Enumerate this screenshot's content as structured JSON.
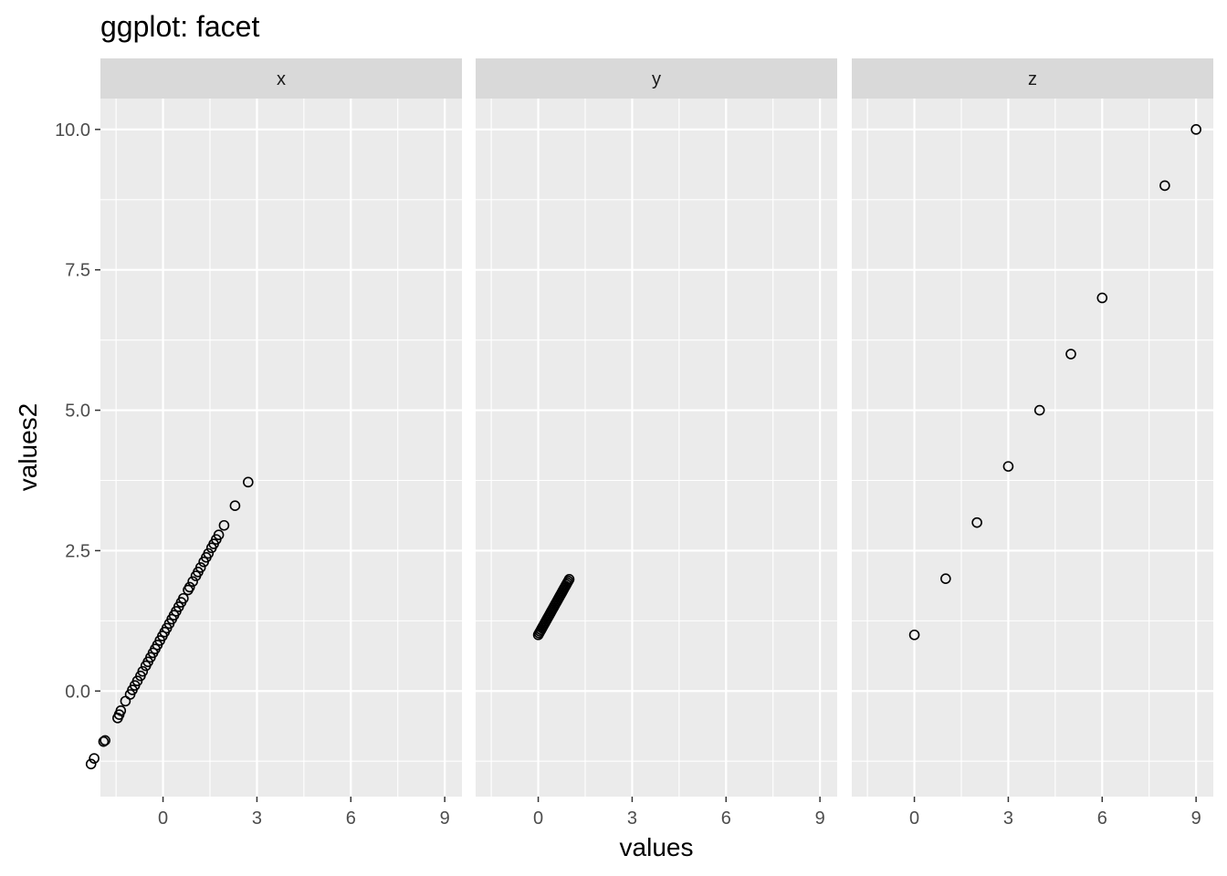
{
  "chart_data": {
    "type": "scatter",
    "title": "ggplot: facet",
    "xlabel": "values",
    "ylabel": "values2",
    "xlim": [
      -2.0,
      9.55
    ],
    "ylim": [
      -1.88,
      10.55
    ],
    "x_ticks": [
      0,
      3,
      6,
      9
    ],
    "y_ticks": [
      0.0,
      2.5,
      5.0,
      7.5,
      10.0
    ],
    "x_tick_labels": [
      "0",
      "3",
      "6",
      "9"
    ],
    "y_tick_labels": [
      "0.0",
      "2.5",
      "5.0",
      "7.5",
      "10.0"
    ],
    "grid": true,
    "facets": [
      {
        "label": "x",
        "points": [
          [
            -2.3,
            -1.3
          ],
          [
            -2.2,
            -1.2
          ],
          [
            -1.9,
            -0.9
          ],
          [
            -1.85,
            -0.88
          ],
          [
            -1.45,
            -0.48
          ],
          [
            -1.4,
            -0.42
          ],
          [
            -1.35,
            -0.35
          ],
          [
            -1.2,
            -0.18
          ],
          [
            -1.05,
            -0.06
          ],
          [
            -0.98,
            0.02
          ],
          [
            -0.9,
            0.1
          ],
          [
            -0.82,
            0.18
          ],
          [
            -0.72,
            0.27
          ],
          [
            -0.65,
            0.35
          ],
          [
            -0.55,
            0.45
          ],
          [
            -0.48,
            0.52
          ],
          [
            -0.4,
            0.6
          ],
          [
            -0.32,
            0.68
          ],
          [
            -0.25,
            0.75
          ],
          [
            -0.18,
            0.82
          ],
          [
            -0.1,
            0.9
          ],
          [
            -0.02,
            0.98
          ],
          [
            0.05,
            1.05
          ],
          [
            0.12,
            1.12
          ],
          [
            0.2,
            1.2
          ],
          [
            0.28,
            1.28
          ],
          [
            0.35,
            1.35
          ],
          [
            0.42,
            1.42
          ],
          [
            0.5,
            1.5
          ],
          [
            0.58,
            1.58
          ],
          [
            0.65,
            1.65
          ],
          [
            0.8,
            1.8
          ],
          [
            0.85,
            1.85
          ],
          [
            0.95,
            1.95
          ],
          [
            1.05,
            2.05
          ],
          [
            1.12,
            2.12
          ],
          [
            1.2,
            2.2
          ],
          [
            1.3,
            2.3
          ],
          [
            1.38,
            2.38
          ],
          [
            1.45,
            2.45
          ],
          [
            1.55,
            2.55
          ],
          [
            1.62,
            2.62
          ],
          [
            1.7,
            2.7
          ],
          [
            1.78,
            2.78
          ],
          [
            1.95,
            2.95
          ],
          [
            2.3,
            3.3
          ],
          [
            2.72,
            3.72
          ]
        ]
      },
      {
        "label": "y",
        "points": [
          [
            0.0,
            1.0
          ],
          [
            0.03,
            1.03
          ],
          [
            0.06,
            1.06
          ],
          [
            0.09,
            1.09
          ],
          [
            0.12,
            1.12
          ],
          [
            0.15,
            1.15
          ],
          [
            0.18,
            1.18
          ],
          [
            0.21,
            1.21
          ],
          [
            0.24,
            1.24
          ],
          [
            0.27,
            1.27
          ],
          [
            0.3,
            1.3
          ],
          [
            0.33,
            1.33
          ],
          [
            0.36,
            1.36
          ],
          [
            0.39,
            1.39
          ],
          [
            0.42,
            1.42
          ],
          [
            0.45,
            1.45
          ],
          [
            0.48,
            1.48
          ],
          [
            0.51,
            1.51
          ],
          [
            0.54,
            1.54
          ],
          [
            0.57,
            1.57
          ],
          [
            0.6,
            1.6
          ],
          [
            0.63,
            1.63
          ],
          [
            0.66,
            1.66
          ],
          [
            0.69,
            1.69
          ],
          [
            0.72,
            1.72
          ],
          [
            0.75,
            1.75
          ],
          [
            0.78,
            1.78
          ],
          [
            0.81,
            1.81
          ],
          [
            0.84,
            1.84
          ],
          [
            0.87,
            1.87
          ],
          [
            0.9,
            1.9
          ],
          [
            0.93,
            1.93
          ],
          [
            0.96,
            1.96
          ],
          [
            0.99,
            1.99
          ]
        ]
      },
      {
        "label": "z",
        "points": [
          [
            0,
            1
          ],
          [
            1,
            2
          ],
          [
            2,
            3
          ],
          [
            3,
            4
          ],
          [
            4,
            5
          ],
          [
            5,
            6
          ],
          [
            6,
            7
          ],
          [
            8,
            9
          ],
          [
            9,
            10
          ]
        ]
      }
    ]
  },
  "colors": {
    "panel_background": "#ebebeb",
    "grid_major": "#ffffff",
    "strip_background": "#d9d9d9",
    "point_stroke": "#000000",
    "axis_text": "#4d4d4d",
    "title_text": "#000000"
  }
}
